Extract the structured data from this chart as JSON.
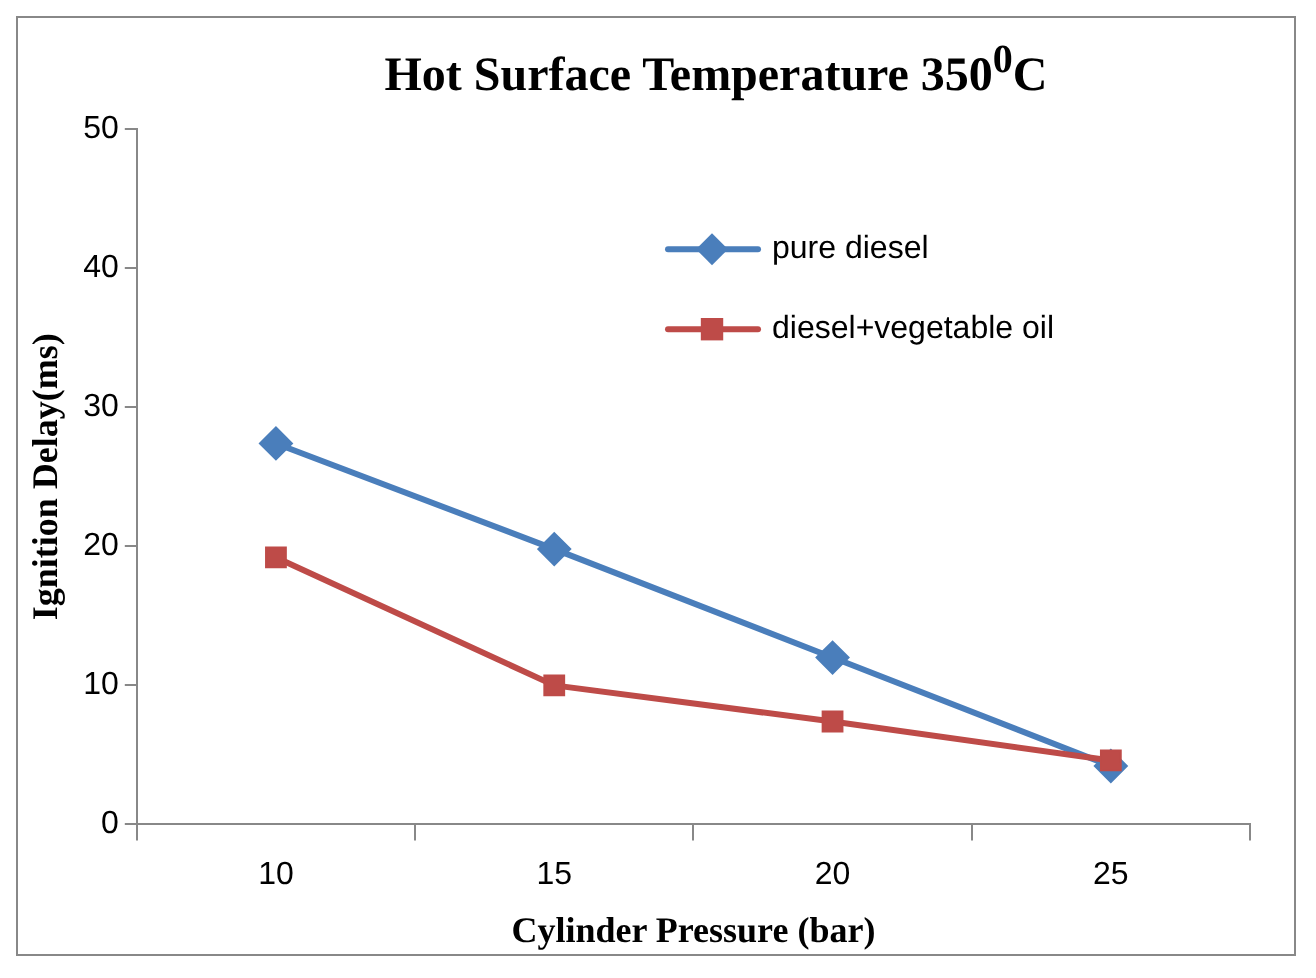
{
  "chart_data": {
    "type": "line",
    "title": "Hot Surface Temperature 350$^{0}$C",
    "xlabel": "Cylinder Pressure (bar)",
    "ylabel": "Ignition Delay(ms)",
    "categories": [
      "10",
      "15",
      "20",
      "25"
    ],
    "series": [
      {
        "name": "pure diesel",
        "color": "#4a7ebb",
        "values": [
          27.4,
          19.8,
          12,
          4.2
        ],
        "marker": "diamond"
      },
      {
        "name": "diesel+vegetable oil",
        "color": "#be4b48",
        "values": [
          19.2,
          10,
          7.4,
          4.6
        ],
        "marker": "square"
      }
    ],
    "ylim": [
      0,
      50
    ],
    "yticks": [
      0,
      10,
      20,
      30,
      40,
      50
    ],
    "grid": false,
    "legend": "top right"
  }
}
